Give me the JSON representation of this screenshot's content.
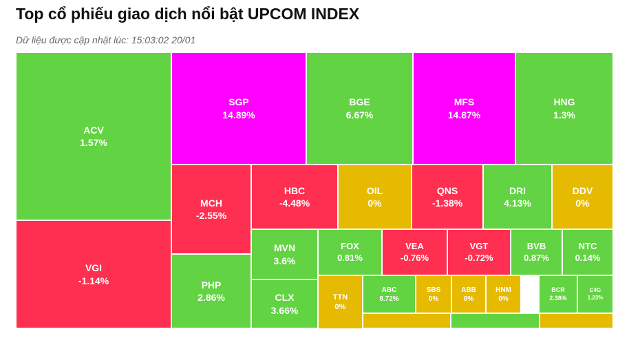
{
  "header": {
    "title": "Top cổ phiếu giao dịch nổi bật UPCOM INDEX",
    "subtitle": "Dữ liệu được cập nhật lúc: 15:03:02 20/01"
  },
  "colors": {
    "up": "#62d342",
    "down": "#fe2f51",
    "ceiling": "#ff00ff",
    "unchanged": "#e6ba00"
  },
  "chart_data": {
    "type": "treemap",
    "title": "Top cổ phiếu giao dịch nổi bật UPCOM INDEX",
    "items": [
      {
        "symbol": "ACV",
        "change": "1.57%",
        "value": 1.57,
        "status": "up"
      },
      {
        "symbol": "VGI",
        "change": "-1.14%",
        "value": -1.14,
        "status": "down"
      },
      {
        "symbol": "SGP",
        "change": "14.89%",
        "value": 14.89,
        "status": "ceiling"
      },
      {
        "symbol": "BGE",
        "change": "6.67%",
        "value": 6.67,
        "status": "up"
      },
      {
        "symbol": "MFS",
        "change": "14.87%",
        "value": 14.87,
        "status": "ceiling"
      },
      {
        "symbol": "HNG",
        "change": "1.3%",
        "value": 1.3,
        "status": "up"
      },
      {
        "symbol": "MCH",
        "change": "-2.55%",
        "value": -2.55,
        "status": "down"
      },
      {
        "symbol": "PHP",
        "change": "2.86%",
        "value": 2.86,
        "status": "up"
      },
      {
        "symbol": "HBC",
        "change": "-4.48%",
        "value": -4.48,
        "status": "down"
      },
      {
        "symbol": "OIL",
        "change": "0%",
        "value": 0,
        "status": "unchanged"
      },
      {
        "symbol": "QNS",
        "change": "-1.38%",
        "value": -1.38,
        "status": "down"
      },
      {
        "symbol": "DRI",
        "change": "4.13%",
        "value": 4.13,
        "status": "up"
      },
      {
        "symbol": "DDV",
        "change": "0%",
        "value": 0,
        "status": "unchanged"
      },
      {
        "symbol": "MVN",
        "change": "3.6%",
        "value": 3.6,
        "status": "up"
      },
      {
        "symbol": "CLX",
        "change": "3.66%",
        "value": 3.66,
        "status": "up"
      },
      {
        "symbol": "FOX",
        "change": "0.81%",
        "value": 0.81,
        "status": "up"
      },
      {
        "symbol": "VEA",
        "change": "-0.76%",
        "value": -0.76,
        "status": "down"
      },
      {
        "symbol": "VGT",
        "change": "-0.72%",
        "value": -0.72,
        "status": "down"
      },
      {
        "symbol": "BVB",
        "change": "0.87%",
        "value": 0.87,
        "status": "up"
      },
      {
        "symbol": "NTC",
        "change": "0.14%",
        "value": 0.14,
        "status": "up"
      },
      {
        "symbol": "TTN",
        "change": "0%",
        "value": 0,
        "status": "unchanged"
      },
      {
        "symbol": "ABC",
        "change": "8.72%",
        "value": 8.72,
        "status": "up"
      },
      {
        "symbol": "SBS",
        "change": "0%",
        "value": 0,
        "status": "unchanged"
      },
      {
        "symbol": "ABB",
        "change": "0%",
        "value": 0,
        "status": "unchanged"
      },
      {
        "symbol": "HNM",
        "change": "0%",
        "value": 0,
        "status": "unchanged"
      },
      {
        "symbol": "BCR",
        "change": "2.38%",
        "value": 2.38,
        "status": "up"
      },
      {
        "symbol": "C4G",
        "change": "1.23%",
        "value": 1.23,
        "status": "up"
      },
      {
        "symbol": "",
        "change": "",
        "value": null,
        "status": "unchanged"
      },
      {
        "symbol": "",
        "change": "",
        "value": null,
        "status": "up"
      },
      {
        "symbol": "",
        "change": "",
        "value": null,
        "status": "unchanged"
      }
    ]
  }
}
